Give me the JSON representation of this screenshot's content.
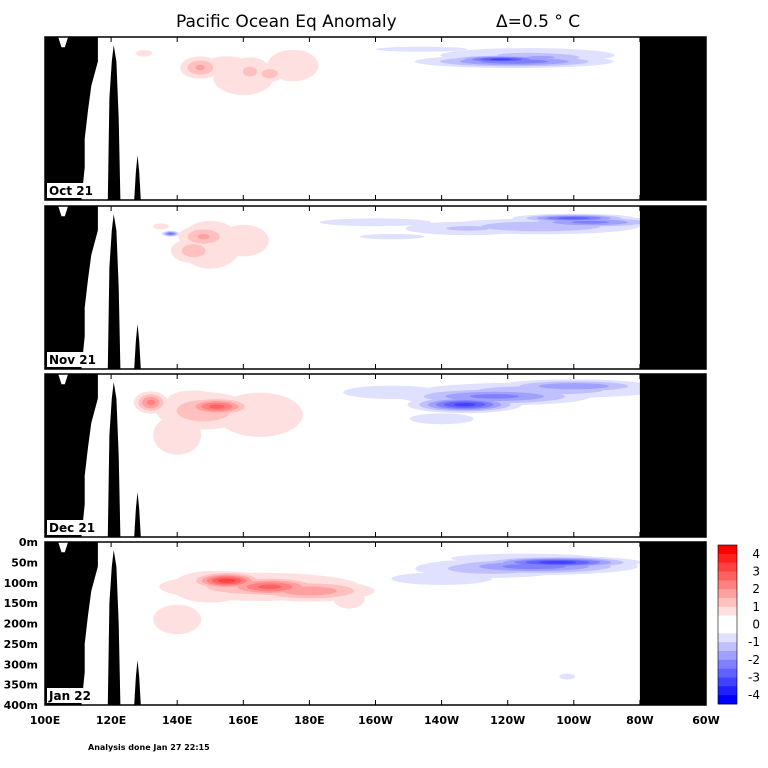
{
  "title": "Pacific Ocean Eq Anomaly",
  "contour_interval": "Δ=0.5 ° C",
  "footer_note": "Analysis done Jan 27 22:15",
  "colors": {
    "land": "#000000",
    "warm_strong": "#ff0000",
    "cold_strong": "#0000ff",
    "neutral": "#ffffff"
  },
  "chart_data": {
    "type": "heatmap",
    "variable": "Temperature anomaly (°C) along the equator",
    "x_ticks": [
      "100E",
      "120E",
      "140E",
      "160E",
      "180E",
      "160W",
      "140W",
      "120W",
      "100W",
      "80W",
      "60W"
    ],
    "x_tick_deg": [
      100,
      120,
      140,
      160,
      180,
      200,
      220,
      240,
      260,
      280,
      300
    ],
    "xlim": [
      100,
      300
    ],
    "y_ticks": [
      "0m",
      "50m",
      "100m",
      "150m",
      "200m",
      "250m",
      "300m",
      "350m",
      "400m"
    ],
    "y_tick_m": [
      0,
      50,
      100,
      150,
      200,
      250,
      300,
      350,
      400
    ],
    "ylim": [
      0,
      400
    ],
    "y_inverted": true,
    "land_east_of_deg": 280,
    "colorbar": {
      "tick_labels": [
        "4",
        "3",
        "2",
        "1",
        "0",
        "-1",
        "-2",
        "-3",
        "-4"
      ],
      "tick_values": [
        4,
        3,
        2,
        1,
        0,
        -1,
        -2,
        -3,
        -4
      ],
      "interval": 0.5,
      "range": [
        -4.5,
        4.5
      ]
    },
    "panels": [
      {
        "label": "Oct 21",
        "warm": [
          [
            155,
            60,
            5,
            12,
            0.9
          ],
          [
            147,
            75,
            4,
            18,
            1.6
          ],
          [
            162,
            85,
            5,
            28,
            1.1
          ],
          [
            175,
            70,
            8,
            40,
            0.8
          ],
          [
            160,
            100,
            15,
            70,
            0.6
          ],
          [
            172,
            150,
            8,
            80,
            0.5
          ],
          [
            130,
            40,
            3,
            10,
            0.7
          ],
          [
            168,
            90,
            3,
            14,
            1.4
          ]
        ],
        "cold": [
          [
            242,
            60,
            17,
            9,
            2.4
          ],
          [
            238,
            55,
            9,
            6,
            3.2
          ],
          [
            250,
            50,
            12,
            10,
            1.6
          ],
          [
            246,
            45,
            21,
            14,
            1.1
          ],
          [
            214,
            30,
            23,
            10,
            0.6
          ],
          [
            250,
            90,
            15,
            18,
            0.5
          ],
          [
            202,
            40,
            22,
            20,
            0.4
          ]
        ]
      },
      {
        "label": "Nov 21",
        "warm": [
          [
            148,
            75,
            5,
            18,
            1.6
          ],
          [
            145,
            110,
            5,
            22,
            1.3
          ],
          [
            150,
            95,
            8,
            50,
            1.0
          ],
          [
            160,
            85,
            8,
            40,
            0.8
          ],
          [
            180,
            100,
            12,
            60,
            0.5
          ],
          [
            135,
            50,
            4,
            12,
            0.6
          ]
        ],
        "cold": [
          [
            260,
            30,
            10,
            6,
            2.8
          ],
          [
            265,
            40,
            13,
            8,
            2.2
          ],
          [
            250,
            50,
            20,
            13,
            1.5
          ],
          [
            228,
            55,
            15,
            13,
            1.1
          ],
          [
            200,
            40,
            28,
            16,
            0.6
          ],
          [
            205,
            75,
            12,
            8,
            0.7
          ],
          [
            138,
            68,
            1.5,
            4,
            2.6
          ]
        ]
      },
      {
        "label": "Dec 21",
        "warm": [
          [
            152,
            80,
            6,
            13,
            2.7
          ],
          [
            132,
            70,
            3,
            16,
            2.2
          ],
          [
            148,
            90,
            10,
            32,
            1.4
          ],
          [
            165,
            100,
            12,
            50,
            0.9
          ],
          [
            140,
            150,
            12,
            80,
            0.6
          ],
          [
            170,
            180,
            8,
            90,
            0.5
          ],
          [
            145,
            60,
            8,
            20,
            0.8
          ]
        ],
        "cold": [
          [
            227,
            75,
            9,
            11,
            3.2
          ],
          [
            236,
            55,
            17,
            13,
            2.2
          ],
          [
            260,
            30,
            14,
            10,
            2.0
          ],
          [
            250,
            40,
            26,
            14,
            1.3
          ],
          [
            205,
            45,
            18,
            20,
            0.7
          ],
          [
            220,
            110,
            16,
            22,
            0.6
          ]
        ]
      },
      {
        "label": "Jan 22",
        "warm": [
          [
            155,
            95,
            6,
            12,
            3.3
          ],
          [
            168,
            110,
            9,
            14,
            2.7
          ],
          [
            180,
            120,
            12,
            16,
            1.9
          ],
          [
            165,
            110,
            22,
            25,
            1.3
          ],
          [
            150,
            110,
            12,
            40,
            0.8
          ],
          [
            140,
            190,
            12,
            60,
            0.6
          ],
          [
            175,
            160,
            15,
            60,
            0.5
          ],
          [
            192,
            140,
            4,
            20,
            1.0
          ]
        ],
        "cold": [
          [
            255,
            50,
            13,
            8,
            3.3
          ],
          [
            248,
            60,
            18,
            12,
            2.3
          ],
          [
            235,
            65,
            16,
            16,
            1.4
          ],
          [
            220,
            90,
            14,
            14,
            0.9
          ],
          [
            245,
            40,
            27,
            14,
            0.7
          ],
          [
            195,
            45,
            10,
            12,
            0.5
          ],
          [
            258,
            330,
            4,
            12,
            0.6
          ]
        ]
      }
    ]
  }
}
